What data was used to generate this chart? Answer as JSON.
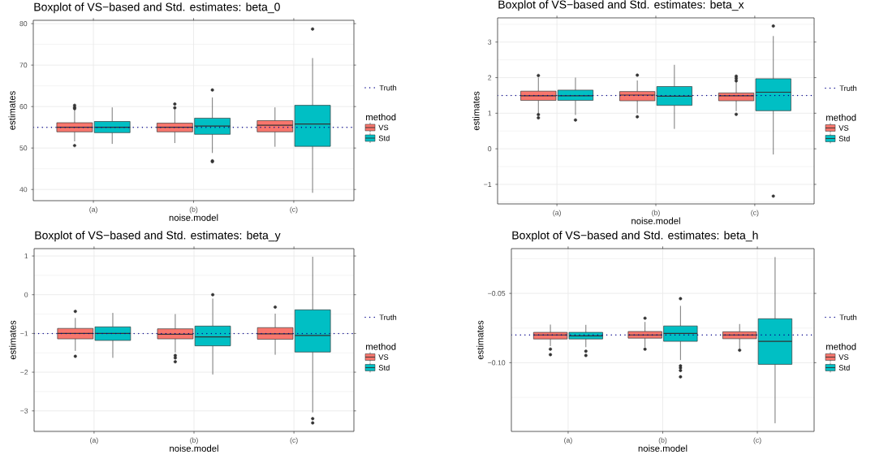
{
  "chart_data": [
    {
      "type": "box",
      "title": "Boxplot of VS−based and Std. estimates: beta_0",
      "xlabel": "noise.model",
      "ylabel": "estimates",
      "categories": [
        "(a)",
        "(b)",
        "(c)"
      ],
      "series": [
        {
          "name": "VS",
          "color": "#f8766d",
          "boxes": [
            {
              "low": 51.6,
              "q1": 53.9,
              "median": 55.0,
              "q3": 56.1,
              "high": 59.2,
              "outliers": [
                60.3,
                59.8,
                59.5,
                50.6
              ]
            },
            {
              "low": 51.2,
              "q1": 53.9,
              "median": 55.0,
              "q3": 56.0,
              "high": 59.3,
              "outliers": [
                60.6,
                59.7
              ]
            },
            {
              "low": 50.3,
              "q1": 53.9,
              "median": 55.5,
              "q3": 56.6,
              "high": 59.8
            }
          ]
        },
        {
          "name": "Std",
          "color": "#00bfc4",
          "boxes": [
            {
              "low": 51.0,
              "q1": 53.7,
              "median": 55.0,
              "q3": 56.4,
              "high": 59.8
            },
            {
              "low": 48.8,
              "q1": 53.3,
              "median": 55.3,
              "q3": 57.2,
              "high": 62.2,
              "outliers": [
                64.0,
                46.9,
                46.7
              ]
            },
            {
              "low": 39.2,
              "q1": 50.4,
              "median": 55.8,
              "q3": 60.3,
              "high": 71.7,
              "outliers": [
                78.7
              ]
            }
          ]
        }
      ],
      "ylim": [
        37.3,
        80.8
      ],
      "yticks": [
        40,
        50,
        60,
        70,
        80
      ],
      "ref_lines": [
        {
          "axis": "y",
          "value": 55,
          "label": "Truth",
          "color": "#00008b",
          "line_style": "dotted"
        }
      ],
      "legend": "right",
      "legend_title": "method",
      "grid": true
    },
    {
      "type": "box",
      "title": "Boxplot of VS−based and Std. estimates: beta_x",
      "xlabel": "noise.model",
      "ylabel": "estimates",
      "categories": [
        "(a)",
        "(b)",
        "(c)"
      ],
      "series": [
        {
          "name": "VS",
          "color": "#f8766d",
          "boxes": [
            {
              "low": 1.0,
              "q1": 1.36,
              "median": 1.49,
              "q3": 1.62,
              "high": 2.0,
              "outliers": [
                2.06,
                0.96,
                0.87
              ]
            },
            {
              "low": 1.0,
              "q1": 1.35,
              "median": 1.51,
              "q3": 1.61,
              "high": 1.92,
              "outliers": [
                2.07,
                0.9
              ]
            },
            {
              "low": 1.06,
              "q1": 1.35,
              "median": 1.49,
              "q3": 1.57,
              "high": 1.9,
              "outliers": [
                2.04,
                1.98,
                1.91,
                0.97
              ]
            }
          ]
        },
        {
          "name": "Std",
          "color": "#00bfc4",
          "boxes": [
            {
              "low": 0.95,
              "q1": 1.36,
              "median": 1.49,
              "q3": 1.65,
              "high": 2.0,
              "outliers": [
                0.81
              ]
            },
            {
              "low": 0.56,
              "q1": 1.22,
              "median": 1.48,
              "q3": 1.75,
              "high": 2.36
            },
            {
              "low": -0.16,
              "q1": 1.07,
              "median": 1.59,
              "q3": 1.97,
              "high": 3.17,
              "outliers": [
                3.45,
                -1.33
              ]
            }
          ]
        }
      ],
      "ylim": [
        -1.55,
        3.68
      ],
      "yticks": [
        {
          "value": -1,
          "label": "−1"
        },
        0,
        1,
        2,
        3
      ],
      "ref_lines": [
        {
          "axis": "y",
          "value": 1.5,
          "label": "Truth",
          "color": "#00008b",
          "line_style": "dotted"
        }
      ],
      "legend": "right",
      "legend_title": "method",
      "grid": true
    },
    {
      "type": "box",
      "title": "Boxplot of VS−based and Std. estimates: beta_y",
      "xlabel": "noise.model",
      "ylabel": "estimates",
      "categories": [
        "(a)",
        "(b)",
        "(c)"
      ],
      "series": [
        {
          "name": "VS",
          "color": "#f8766d",
          "boxes": [
            {
              "low": -1.45,
              "q1": -1.14,
              "median": -1.0,
              "q3": -0.87,
              "high": -0.6,
              "outliers": [
                -0.43,
                -1.59
              ]
            },
            {
              "low": -1.49,
              "q1": -1.14,
              "median": -1.02,
              "q3": -0.88,
              "high": -0.5,
              "outliers": [
                -1.57,
                -1.63,
                -1.73
              ]
            },
            {
              "low": -1.55,
              "q1": -1.15,
              "median": -1.01,
              "q3": -0.85,
              "high": -0.49,
              "outliers": [
                -0.32
              ]
            }
          ]
        },
        {
          "name": "Std",
          "color": "#00bfc4",
          "boxes": [
            {
              "low": -1.63,
              "q1": -1.18,
              "median": -1.0,
              "q3": -0.83,
              "high": -0.47
            },
            {
              "low": -2.06,
              "q1": -1.32,
              "median": -1.09,
              "q3": -0.81,
              "high": -0.1,
              "outliers": [
                0.0
              ]
            },
            {
              "low": -3.04,
              "q1": -1.48,
              "median": -1.05,
              "q3": -0.39,
              "high": 0.98,
              "outliers": [
                -3.2,
                -3.31
              ]
            }
          ]
        }
      ],
      "ylim": [
        -3.53,
        1.19
      ],
      "yticks": [
        {
          "value": -3,
          "label": "−3"
        },
        {
          "value": -2,
          "label": "−2"
        },
        {
          "value": -1,
          "label": "−1"
        },
        0,
        1
      ],
      "ref_lines": [
        {
          "axis": "y",
          "value": -1,
          "label": "Truth",
          "color": "#00008b",
          "line_style": "dotted"
        }
      ],
      "legend": "right",
      "legend_title": "method",
      "grid": true
    },
    {
      "type": "box",
      "title": "Boxplot of VS−based and Std. estimates: beta_h",
      "xlabel": "noise.model",
      "ylabel": "estimates",
      "categories": [
        "(a)",
        "(b)",
        "(c)"
      ],
      "series": [
        {
          "name": "VS",
          "color": "#f8766d",
          "boxes": [
            {
              "low": -0.088,
              "q1": -0.0829,
              "median": -0.08,
              "q3": -0.0781,
              "high": -0.0725,
              "outliers": [
                -0.0902,
                -0.0942
              ]
            },
            {
              "low": -0.0888,
              "q1": -0.0823,
              "median": -0.08,
              "q3": -0.0775,
              "high": -0.0706,
              "outliers": [
                -0.0679,
                -0.0902
              ]
            },
            {
              "low": -0.0898,
              "q1": -0.0827,
              "median": -0.08,
              "q3": -0.0777,
              "high": -0.0721,
              "outliers": [
                -0.091
              ]
            }
          ]
        },
        {
          "name": "Std",
          "color": "#00bfc4",
          "boxes": [
            {
              "low": -0.0888,
              "q1": -0.0829,
              "median": -0.0806,
              "q3": -0.0781,
              "high": -0.0727,
              "outliers": [
                -0.0917,
                -0.0948
              ]
            },
            {
              "low": -0.0981,
              "q1": -0.0846,
              "median": -0.0789,
              "q3": -0.0735,
              "high": -0.059,
              "outliers": [
                -0.0538,
                -0.1023,
                -0.1037,
                -0.1056,
                -0.1102
              ]
            },
            {
              "low": -0.1437,
              "q1": -0.1012,
              "median": -0.0846,
              "q3": -0.0683,
              "high": -0.0238
            }
          ]
        }
      ],
      "ylim": [
        -0.1496,
        -0.0177
      ],
      "yticks": [
        {
          "value": -0.1,
          "label": "−0.10"
        },
        {
          "value": -0.05,
          "label": "−0.05"
        }
      ],
      "ref_lines": [
        {
          "axis": "y",
          "value": -0.08,
          "label": "Truth",
          "color": "#00008b",
          "line_style": "dotted"
        }
      ],
      "legend": "right",
      "legend_title": "method",
      "grid": true
    }
  ]
}
